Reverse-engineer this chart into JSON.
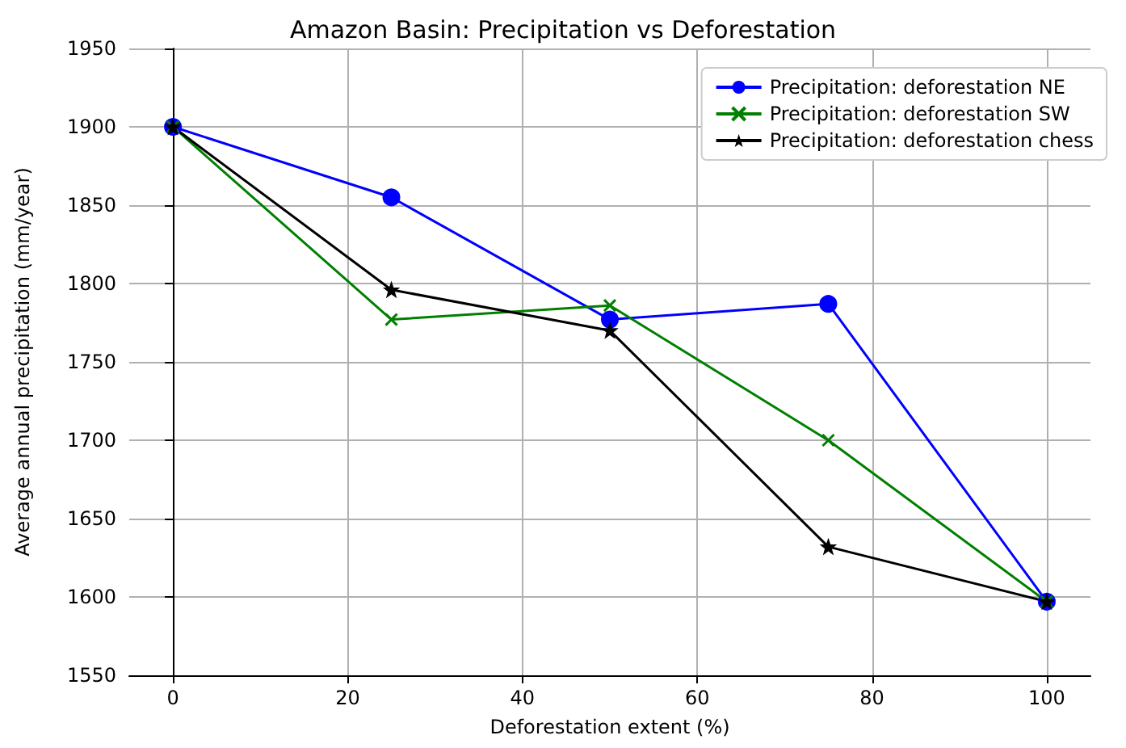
{
  "chart_data": {
    "type": "line",
    "title": "Amazon Basin: Precipitation vs Deforestation",
    "xlabel": "Deforestation extent (%)",
    "ylabel": "Average annual precipitation (mm/year)",
    "x": [
      0,
      25,
      50,
      75,
      100
    ],
    "series": [
      {
        "name": "Precipitation: deforestation NE",
        "color": "#0000ff",
        "marker": "circle",
        "values": [
          1900,
          1855,
          1777,
          1787,
          1597
        ]
      },
      {
        "name": "Precipitation: deforestation SW",
        "color": "#008000",
        "marker": "cross",
        "values": [
          1900,
          1777,
          1786,
          1700,
          1597
        ]
      },
      {
        "name": "Precipitation: deforestation chess",
        "color": "#000000",
        "marker": "star",
        "values": [
          1900,
          1796,
          1770,
          1632,
          1597
        ]
      }
    ],
    "xlim": [
      -5,
      105
    ],
    "xticks": [
      0,
      20,
      40,
      60,
      80,
      100
    ],
    "ylim": [
      1550,
      1950
    ],
    "yticks": [
      1550,
      1600,
      1650,
      1700,
      1750,
      1800,
      1850,
      1900,
      1950
    ],
    "grid": true,
    "legend": "top right"
  }
}
